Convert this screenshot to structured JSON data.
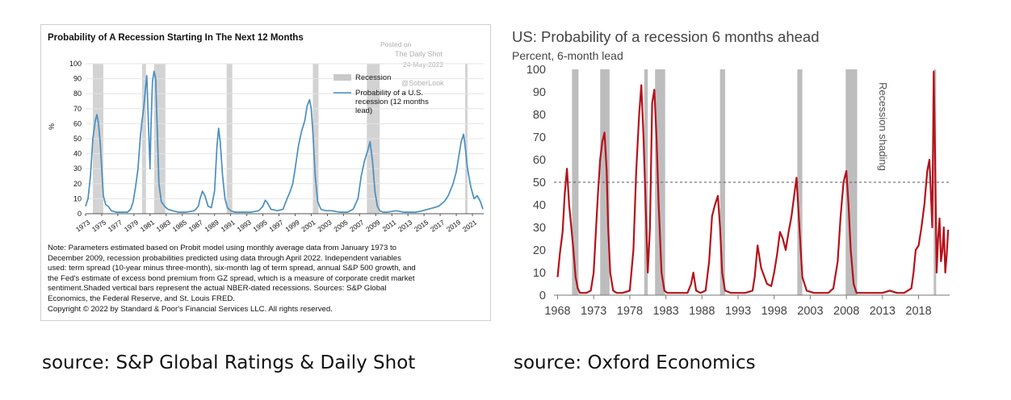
{
  "chart_data": [
    {
      "type": "line",
      "title": "Probability of A Recession Starting In The Next 12 Months",
      "ylabel": "%",
      "ylim": [
        0,
        100
      ],
      "xlim": [
        1973,
        2022.4
      ],
      "yticks": [
        0,
        10,
        20,
        30,
        40,
        50,
        60,
        70,
        80,
        90,
        100
      ],
      "xtick_labels": [
        "1973",
        "1975",
        "1977",
        "1979",
        "1981",
        "1983",
        "1985",
        "1987",
        "1989",
        "1991",
        "1993",
        "1995",
        "1997",
        "1999",
        "2001",
        "2003",
        "2005",
        "2007",
        "2009",
        "2011",
        "2013",
        "2015",
        "2017",
        "2019",
        "2021"
      ],
      "grid": true,
      "legend_placement": "top-right",
      "legend": [
        "Recession",
        "Probability of a U.S. recession (12 months lead)"
      ],
      "recessions": [
        [
          1973.9,
          1975.2
        ],
        [
          1980.0,
          1980.5
        ],
        [
          1981.5,
          1982.9
        ],
        [
          1990.5,
          1991.2
        ],
        [
          2001.2,
          2001.9
        ],
        [
          2007.9,
          2009.5
        ],
        [
          2020.1,
          2020.4
        ]
      ],
      "watermark": [
        "Posted on",
        "The Daily Shot",
        "24-May-2022",
        "@SoberLook"
      ],
      "series": [
        {
          "name": "Probability of a U.S. recession (12 months lead)",
          "color": "#4a8ec0",
          "x": [
            1973.0,
            1973.3,
            1973.6,
            1973.9,
            1974.2,
            1974.4,
            1974.6,
            1974.8,
            1975.0,
            1975.2,
            1975.5,
            1975.8,
            1976.2,
            1976.8,
            1977.5,
            1978.2,
            1978.6,
            1978.9,
            1979.2,
            1979.5,
            1979.8,
            1980.0,
            1980.2,
            1980.4,
            1980.6,
            1980.8,
            1981.0,
            1981.1,
            1981.3,
            1981.5,
            1981.7,
            1981.9,
            1982.1,
            1982.4,
            1982.8,
            1983.2,
            1983.8,
            1984.5,
            1985.5,
            1986.5,
            1987.0,
            1987.2,
            1987.5,
            1987.8,
            1988.2,
            1988.6,
            1989.0,
            1989.3,
            1989.5,
            1989.7,
            1990.0,
            1990.3,
            1990.6,
            1991.0,
            1991.5,
            1992.5,
            1993.5,
            1994.5,
            1995.0,
            1995.3,
            1995.6,
            1996.0,
            1996.8,
            1997.5,
            1998.0,
            1998.4,
            1998.7,
            1999.0,
            1999.4,
            1999.8,
            2000.2,
            2000.5,
            2000.8,
            2001.0,
            2001.2,
            2001.5,
            2001.8,
            2002.2,
            2002.8,
            2003.5,
            2004.5,
            2005.5,
            2006.2,
            2006.8,
            2007.2,
            2007.6,
            2008.0,
            2008.3,
            2008.6,
            2008.9,
            2009.2,
            2009.5,
            2009.9,
            2010.5,
            2011.5,
            2012.5,
            2013.3,
            2014.0,
            2014.8,
            2015.5,
            2016.2,
            2016.8,
            2017.5,
            2018.0,
            2018.6,
            2019.0,
            2019.3,
            2019.6,
            2019.9,
            2020.1,
            2020.4,
            2020.8,
            2021.2,
            2021.6,
            2022.0,
            2022.3
          ],
          "y": [
            5,
            10,
            25,
            50,
            62,
            66,
            60,
            48,
            30,
            12,
            6,
            5,
            2,
            1,
            1,
            1,
            3,
            8,
            18,
            30,
            52,
            62,
            70,
            82,
            92,
            60,
            30,
            55,
            88,
            95,
            90,
            55,
            20,
            8,
            5,
            3,
            2,
            1,
            1,
            2,
            5,
            10,
            15,
            12,
            5,
            4,
            15,
            45,
            57,
            48,
            25,
            10,
            4,
            2,
            1,
            1,
            1,
            2,
            5,
            9,
            7,
            3,
            2,
            3,
            10,
            15,
            20,
            30,
            45,
            55,
            62,
            72,
            76,
            70,
            55,
            25,
            8,
            3,
            2,
            2,
            1,
            1,
            3,
            10,
            25,
            35,
            42,
            48,
            35,
            15,
            5,
            2,
            1,
            1,
            2,
            1,
            1,
            1,
            2,
            3,
            4,
            5,
            8,
            12,
            20,
            28,
            38,
            48,
            53,
            45,
            30,
            18,
            10,
            12,
            8,
            3
          ]
        }
      ]
    },
    {
      "type": "line",
      "title": "US: Probability of a recession 6 months ahead",
      "subtitle": "Percent, 6-month lead",
      "ylim": [
        0,
        100
      ],
      "xlim": [
        1967.5,
        2022.3
      ],
      "yticks": [
        0,
        10,
        20,
        30,
        40,
        50,
        60,
        70,
        80,
        90,
        100
      ],
      "xtick_labels": [
        "1968",
        "1973",
        "1978",
        "1983",
        "1988",
        "1993",
        "1998",
        "2003",
        "2008",
        "2013",
        "2018"
      ],
      "threshold": 50,
      "annotation": "Recession shading",
      "recessions": [
        [
          1970.0,
          1970.9
        ],
        [
          1973.9,
          1975.2
        ],
        [
          1980.0,
          1980.5
        ],
        [
          1981.5,
          1982.9
        ],
        [
          1990.5,
          1991.2
        ],
        [
          2001.2,
          2001.9
        ],
        [
          2007.9,
          2009.5
        ],
        [
          2020.1,
          2020.4
        ]
      ],
      "series": [
        {
          "name": "",
          "color": "#b5121b",
          "x": [
            1968.0,
            1968.3,
            1968.7,
            1969.0,
            1969.3,
            1969.6,
            1969.9,
            1970.2,
            1970.5,
            1970.8,
            1971.1,
            1971.5,
            1972.0,
            1972.6,
            1973.0,
            1973.3,
            1973.6,
            1973.9,
            1974.2,
            1974.5,
            1974.8,
            1975.0,
            1975.3,
            1975.7,
            1976.2,
            1977.0,
            1978.0,
            1978.5,
            1978.9,
            1979.3,
            1979.6,
            1979.9,
            1980.2,
            1980.5,
            1980.8,
            1981.1,
            1981.4,
            1981.7,
            1982.0,
            1982.4,
            1982.8,
            1983.2,
            1984.0,
            1985.0,
            1986.0,
            1986.5,
            1986.8,
            1987.2,
            1987.8,
            1988.5,
            1989.0,
            1989.4,
            1989.8,
            1990.2,
            1990.5,
            1990.8,
            1991.2,
            1992.0,
            1993.0,
            1994.0,
            1995.0,
            1995.3,
            1995.7,
            1996.2,
            1997.0,
            1997.6,
            1998.0,
            1998.4,
            1998.8,
            1999.2,
            1999.6,
            2000.0,
            2000.4,
            2000.8,
            2001.1,
            2001.5,
            2001.9,
            2002.5,
            2003.5,
            2004.5,
            2005.5,
            2006.2,
            2006.8,
            2007.2,
            2007.6,
            2008.0,
            2008.3,
            2008.6,
            2009.0,
            2009.4,
            2010.0,
            2011.0,
            2012.0,
            2013.0,
            2014.0,
            2015.0,
            2016.0,
            2016.5,
            2017.0,
            2017.3,
            2017.6,
            2018.0,
            2018.4,
            2018.8,
            2019.2,
            2019.5,
            2019.7,
            2019.9,
            2020.1,
            2020.3,
            2020.5,
            2020.7,
            2020.9,
            2021.1,
            2021.3,
            2021.5,
            2021.7,
            2021.9,
            2022.1
          ],
          "y": [
            8,
            18,
            28,
            45,
            56,
            40,
            30,
            20,
            8,
            3,
            1,
            1,
            1,
            2,
            10,
            28,
            45,
            60,
            68,
            72,
            55,
            30,
            10,
            2,
            1,
            1,
            2,
            20,
            55,
            80,
            93,
            70,
            40,
            10,
            30,
            85,
            91,
            70,
            40,
            10,
            2,
            1,
            1,
            1,
            1,
            5,
            10,
            2,
            1,
            2,
            15,
            35,
            40,
            44,
            30,
            10,
            2,
            1,
            1,
            1,
            2,
            8,
            22,
            12,
            5,
            4,
            10,
            18,
            28,
            25,
            20,
            28,
            35,
            45,
            52,
            30,
            8,
            2,
            1,
            1,
            1,
            3,
            15,
            35,
            50,
            55,
            40,
            20,
            5,
            1,
            1,
            1,
            1,
            1,
            2,
            1,
            1,
            2,
            3,
            10,
            20,
            22,
            30,
            40,
            55,
            60,
            45,
            30,
            99,
            60,
            10,
            25,
            34,
            15,
            20,
            30,
            10,
            18,
            29
          ]
        }
      ]
    }
  ],
  "notes": {
    "lines": [
      "Note: Parameters estimated based on Probit model using monthly average data from January 1973 to",
      "December 2009, recession probabilities predicted using data through April 2022. Independent variables",
      "used: term spread (10-year minus three-month), six-month lag of term spread, annual S&P 500 growth, and",
      "the Fed's estimate of excess bond premium from GZ spread, which is a measure of corporate credit market",
      "sentiment.Shaded vertical bars represent the actual NBER-dated recessions. Sources: S&P Global",
      "Economics, the Federal Reserve, and St. Louis FRED.",
      "Copyright © 2022 by Standard & Poor's Financial Services LLC. All rights reserved."
    ]
  },
  "captions": {
    "left": "source: S&P Global Ratings & Daily Shot",
    "right": "source: Oxford Economics"
  }
}
